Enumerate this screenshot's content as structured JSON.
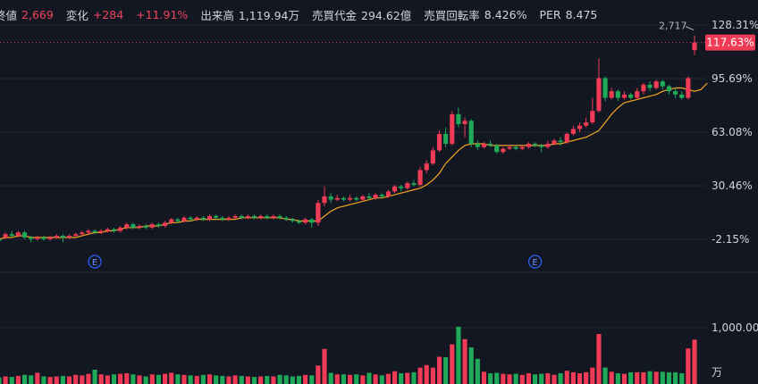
{
  "header": {
    "items": [
      {
        "label": "終値",
        "value": "2,669",
        "color": "red"
      },
      {
        "label": "変化",
        "value": "+284",
        "color": "red"
      },
      {
        "label": "",
        "value": "+11.91%",
        "color": "red"
      },
      {
        "label": "出来高",
        "value": "1,119.94万",
        "color": "plain"
      },
      {
        "label": "売買代金",
        "value": "294.62億",
        "color": "plain"
      },
      {
        "label": "売買回転率",
        "value": "8.426%",
        "color": "plain"
      },
      {
        "label": "PER",
        "value": "8.475",
        "color": "plain"
      }
    ]
  },
  "colors": {
    "up": "#ef3b55",
    "down": "#1faa5a",
    "ma": "#f5a623",
    "background": "#131722",
    "grid": "#232733",
    "earnings_badge": "#2962ff"
  },
  "chart_data": {
    "type": "candlestick",
    "price_axis": {
      "unit": "%",
      "ticks": [
        "128.31%",
        "95.69%",
        "63.08%",
        "30.46%",
        "-2.15%"
      ],
      "tick_values": [
        128.31,
        95.69,
        63.08,
        30.46,
        -2.15
      ],
      "range": [
        -11,
        140
      ]
    },
    "last_value_label": "117.63%",
    "last_value": 117.63,
    "high_label": "2,717",
    "volume_axis": {
      "unit": "万",
      "ticks": [
        "1,000.00"
      ],
      "tick_values": [
        1000
      ],
      "range": [
        0,
        1330
      ]
    },
    "earnings_markers": [
      {
        "label": "E",
        "index": 15
      },
      {
        "label": "E",
        "index": 84
      }
    ],
    "candles": [
      {
        "o": -2,
        "c": -3,
        "h": 1,
        "l": -4,
        "v": 40
      },
      {
        "o": -1,
        "c": 1,
        "h": 2,
        "l": -2,
        "v": 60
      },
      {
        "o": 1,
        "c": 0,
        "h": 3,
        "l": -1,
        "v": 50
      },
      {
        "o": 0,
        "c": 2,
        "h": 3,
        "l": -1,
        "v": 70
      },
      {
        "o": 2,
        "c": -1,
        "h": 3,
        "l": -2,
        "v": 90
      },
      {
        "o": -1,
        "c": -2,
        "h": 0,
        "l": -4,
        "v": 80
      },
      {
        "o": -2,
        "c": -1,
        "h": 0,
        "l": -3,
        "v": 130
      },
      {
        "o": -1,
        "c": -2,
        "h": 0,
        "l": -3,
        "v": 60
      },
      {
        "o": -2,
        "c": -1,
        "h": 0,
        "l": -3,
        "v": 50
      },
      {
        "o": -1,
        "c": 0,
        "h": 1,
        "l": -2,
        "v": 60
      },
      {
        "o": 0,
        "c": -1,
        "h": 1,
        "l": -4,
        "v": 70
      },
      {
        "o": -1,
        "c": 0,
        "h": 1,
        "l": -2,
        "v": 60
      },
      {
        "o": 0,
        "c": 1,
        "h": 2,
        "l": -1,
        "v": 90
      },
      {
        "o": 1,
        "c": 2,
        "h": 3,
        "l": 0,
        "v": 80
      },
      {
        "o": 2,
        "c": 3,
        "h": 4,
        "l": 1,
        "v": 110
      },
      {
        "o": 3,
        "c": 2,
        "h": 4,
        "l": 1,
        "v": 190
      },
      {
        "o": 2,
        "c": 3,
        "h": 4,
        "l": 1,
        "v": 100
      },
      {
        "o": 3,
        "c": 4,
        "h": 5,
        "l": 2,
        "v": 80
      },
      {
        "o": 4,
        "c": 3,
        "h": 5,
        "l": 2,
        "v": 100
      },
      {
        "o": 3,
        "c": 5,
        "h": 6,
        "l": 2,
        "v": 110
      },
      {
        "o": 5,
        "c": 7,
        "h": 8,
        "l": 4,
        "v": 120
      },
      {
        "o": 7,
        "c": 5,
        "h": 8,
        "l": 4,
        "v": 100
      },
      {
        "o": 5,
        "c": 6,
        "h": 7,
        "l": 4,
        "v": 80
      },
      {
        "o": 6,
        "c": 5,
        "h": 7,
        "l": 4,
        "v": 60
      },
      {
        "o": 5,
        "c": 7,
        "h": 8,
        "l": 4,
        "v": 100
      },
      {
        "o": 7,
        "c": 6,
        "h": 8,
        "l": 5,
        "v": 90
      },
      {
        "o": 6,
        "c": 8,
        "h": 9,
        "l": 5,
        "v": 110
      },
      {
        "o": 8,
        "c": 10,
        "h": 11,
        "l": 7,
        "v": 130
      },
      {
        "o": 10,
        "c": 9,
        "h": 11,
        "l": 8,
        "v": 100
      },
      {
        "o": 9,
        "c": 11,
        "h": 12,
        "l": 8,
        "v": 90
      },
      {
        "o": 11,
        "c": 10,
        "h": 12,
        "l": 9,
        "v": 80
      },
      {
        "o": 10,
        "c": 11,
        "h": 12,
        "l": 9,
        "v": 70
      },
      {
        "o": 11,
        "c": 10,
        "h": 12,
        "l": 9,
        "v": 90
      },
      {
        "o": 10,
        "c": 12,
        "h": 13,
        "l": 9,
        "v": 100
      },
      {
        "o": 12,
        "c": 11,
        "h": 13,
        "l": 10,
        "v": 80
      },
      {
        "o": 11,
        "c": 10,
        "h": 12,
        "l": 9,
        "v": 70
      },
      {
        "o": 10,
        "c": 11,
        "h": 12,
        "l": 9,
        "v": 60
      },
      {
        "o": 11,
        "c": 12,
        "h": 13,
        "l": 10,
        "v": 80
      },
      {
        "o": 12,
        "c": 11,
        "h": 13,
        "l": 10,
        "v": 70
      },
      {
        "o": 11,
        "c": 12,
        "h": 13,
        "l": 10,
        "v": 60
      },
      {
        "o": 12,
        "c": 11,
        "h": 13,
        "l": 10,
        "v": 50
      },
      {
        "o": 11,
        "c": 12,
        "h": 13,
        "l": 10,
        "v": 60
      },
      {
        "o": 12,
        "c": 11,
        "h": 13,
        "l": 10,
        "v": 70
      },
      {
        "o": 11,
        "c": 12,
        "h": 13,
        "l": 10,
        "v": 60
      },
      {
        "o": 12,
        "c": 11,
        "h": 13,
        "l": 10,
        "v": 90
      },
      {
        "o": 11,
        "c": 10,
        "h": 12,
        "l": 9,
        "v": 80
      },
      {
        "o": 10,
        "c": 9,
        "h": 11,
        "l": 8,
        "v": 60
      },
      {
        "o": 9,
        "c": 8,
        "h": 10,
        "l": 7,
        "v": 70
      },
      {
        "o": 8,
        "c": 10,
        "h": 11,
        "l": 7,
        "v": 90
      },
      {
        "o": 10,
        "c": 8,
        "h": 11,
        "l": 5,
        "v": 80
      },
      {
        "o": 8,
        "c": 20,
        "h": 22,
        "l": 6,
        "v": 270
      },
      {
        "o": 20,
        "c": 24,
        "h": 30,
        "l": 18,
        "v": 590
      },
      {
        "o": 24,
        "c": 22,
        "h": 26,
        "l": 20,
        "v": 130
      },
      {
        "o": 22,
        "c": 23,
        "h": 25,
        "l": 21,
        "v": 100
      },
      {
        "o": 23,
        "c": 22,
        "h": 24,
        "l": 21,
        "v": 100
      },
      {
        "o": 22,
        "c": 23,
        "h": 25,
        "l": 21,
        "v": 90
      },
      {
        "o": 23,
        "c": 22,
        "h": 24,
        "l": 21,
        "v": 100
      },
      {
        "o": 22,
        "c": 24,
        "h": 25,
        "l": 21,
        "v": 80
      },
      {
        "o": 24,
        "c": 23,
        "h": 26,
        "l": 22,
        "v": 130
      },
      {
        "o": 23,
        "c": 25,
        "h": 26,
        "l": 22,
        "v": 100
      },
      {
        "o": 25,
        "c": 24,
        "h": 26,
        "l": 23,
        "v": 80
      },
      {
        "o": 24,
        "c": 27,
        "h": 28,
        "l": 23,
        "v": 110
      },
      {
        "o": 27,
        "c": 30,
        "h": 31,
        "l": 26,
        "v": 160
      },
      {
        "o": 30,
        "c": 29,
        "h": 31,
        "l": 27,
        "v": 120
      },
      {
        "o": 29,
        "c": 32,
        "h": 33,
        "l": 28,
        "v": 130
      },
      {
        "o": 32,
        "c": 31,
        "h": 34,
        "l": 30,
        "v": 140
      },
      {
        "o": 31,
        "c": 40,
        "h": 42,
        "l": 30,
        "v": 230
      },
      {
        "o": 40,
        "c": 44,
        "h": 46,
        "l": 38,
        "v": 280
      },
      {
        "o": 44,
        "c": 52,
        "h": 54,
        "l": 43,
        "v": 230
      },
      {
        "o": 52,
        "c": 62,
        "h": 64,
        "l": 51,
        "v": 440
      },
      {
        "o": 62,
        "c": 56,
        "h": 66,
        "l": 54,
        "v": 430
      },
      {
        "o": 56,
        "c": 74,
        "h": 76,
        "l": 55,
        "v": 680
      },
      {
        "o": 74,
        "c": 68,
        "h": 78,
        "l": 66,
        "v": 1020
      },
      {
        "o": 68,
        "c": 70,
        "h": 72,
        "l": 60,
        "v": 780
      },
      {
        "o": 70,
        "c": 56,
        "h": 71,
        "l": 54,
        "v": 620
      },
      {
        "o": 56,
        "c": 54,
        "h": 58,
        "l": 52,
        "v": 400
      },
      {
        "o": 54,
        "c": 56,
        "h": 57,
        "l": 53,
        "v": 150
      },
      {
        "o": 56,
        "c": 55,
        "h": 58,
        "l": 54,
        "v": 120
      },
      {
        "o": 55,
        "c": 51,
        "h": 56,
        "l": 50,
        "v": 130
      },
      {
        "o": 51,
        "c": 53,
        "h": 54,
        "l": 50,
        "v": 110
      }
    ],
    "candles_tail": [
      {
        "o": 53,
        "c": 54,
        "h": 55,
        "l": 52,
        "v": 100
      },
      {
        "o": 54,
        "c": 53,
        "h": 55,
        "l": 52,
        "v": 110
      },
      {
        "o": 53,
        "c": 54,
        "h": 55,
        "l": 52,
        "v": 90
      },
      {
        "o": 54,
        "c": 56,
        "h": 57,
        "l": 53,
        "v": 120
      },
      {
        "o": 56,
        "c": 55,
        "h": 57,
        "l": 54,
        "v": 100
      },
      {
        "o": 55,
        "c": 54,
        "h": 56,
        "l": 51,
        "v": 110
      },
      {
        "o": 54,
        "c": 56,
        "h": 58,
        "l": 53,
        "v": 120
      },
      {
        "o": 56,
        "c": 58,
        "h": 59,
        "l": 55,
        "v": 90
      },
      {
        "o": 58,
        "c": 57,
        "h": 60,
        "l": 55,
        "v": 120
      },
      {
        "o": 57,
        "c": 62,
        "h": 63,
        "l": 56,
        "v": 170
      },
      {
        "o": 62,
        "c": 65,
        "h": 67,
        "l": 61,
        "v": 140
      },
      {
        "o": 65,
        "c": 67,
        "h": 69,
        "l": 63,
        "v": 120
      },
      {
        "o": 67,
        "c": 69,
        "h": 72,
        "l": 66,
        "v": 140
      },
      {
        "o": 69,
        "c": 76,
        "h": 84,
        "l": 68,
        "v": 230
      },
      {
        "o": 76,
        "c": 96,
        "h": 108,
        "l": 75,
        "v": 880
      },
      {
        "o": 96,
        "c": 84,
        "h": 97,
        "l": 82,
        "v": 230
      },
      {
        "o": 84,
        "c": 88,
        "h": 90,
        "l": 83,
        "v": 150
      },
      {
        "o": 88,
        "c": 84,
        "h": 89,
        "l": 82,
        "v": 120
      },
      {
        "o": 84,
        "c": 86,
        "h": 88,
        "l": 83,
        "v": 110
      },
      {
        "o": 86,
        "c": 84,
        "h": 87,
        "l": 83,
        "v": 140
      },
      {
        "o": 84,
        "c": 88,
        "h": 90,
        "l": 83,
        "v": 140
      },
      {
        "o": 88,
        "c": 92,
        "h": 93,
        "l": 86,
        "v": 140
      },
      {
        "o": 92,
        "c": 90,
        "h": 94,
        "l": 88,
        "v": 160
      },
      {
        "o": 90,
        "c": 94,
        "h": 95,
        "l": 89,
        "v": 150
      },
      {
        "o": 94,
        "c": 91,
        "h": 95,
        "l": 89,
        "v": 150
      },
      {
        "o": 91,
        "c": 88,
        "h": 92,
        "l": 86,
        "v": 140
      },
      {
        "o": 88,
        "c": 86,
        "h": 90,
        "l": 84,
        "v": 140
      },
      {
        "o": 86,
        "c": 84,
        "h": 88,
        "l": 83,
        "v": 120
      },
      {
        "o": 84,
        "c": 96,
        "h": 97,
        "l": 83,
        "v": 600
      },
      {
        "o": 113,
        "c": 117.63,
        "h": 122,
        "l": 110,
        "v": 770
      }
    ],
    "ma_line": [
      -2,
      -1,
      -1,
      0,
      0,
      -1,
      -1,
      -1,
      -1,
      -1,
      -1,
      -1,
      -1,
      0,
      1,
      2,
      2,
      3,
      3,
      4,
      5,
      5,
      5,
      6,
      6,
      6,
      7,
      8,
      8,
      9,
      9,
      10,
      10,
      10,
      10,
      10,
      10,
      10,
      11,
      11,
      11,
      11,
      11,
      11,
      11,
      10,
      10,
      9,
      9,
      9,
      9,
      12,
      15,
      17,
      18,
      19,
      20,
      21,
      22,
      23,
      23,
      24,
      25,
      26,
      27,
      28,
      29,
      31,
      34,
      38,
      44,
      48,
      52,
      55,
      56,
      56,
      56,
      55,
      55,
      55,
      55,
      55,
      55,
      55,
      55,
      55,
      55,
      56,
      56,
      57,
      58,
      59,
      60,
      62,
      64,
      69,
      74,
      78,
      81,
      82,
      83,
      84,
      85,
      86,
      88,
      89,
      90,
      90,
      89,
      88,
      89,
      93
    ]
  }
}
